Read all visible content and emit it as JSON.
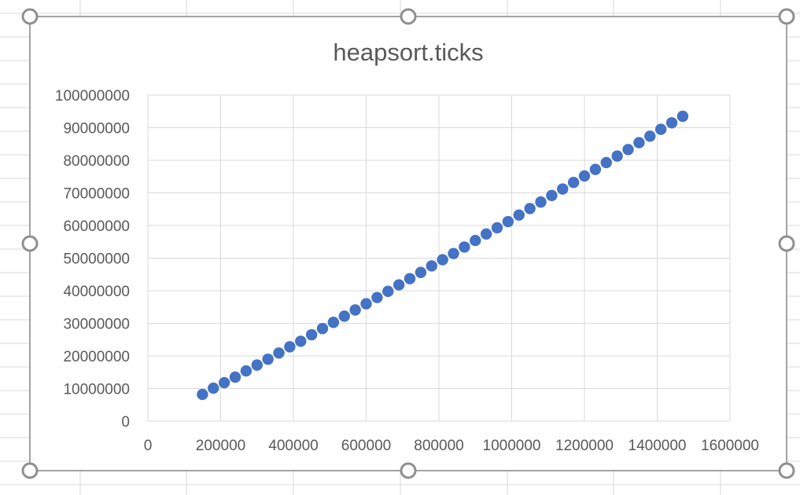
{
  "chart_data": {
    "type": "scatter",
    "title": "heapsort.ticks",
    "xlabel": "",
    "ylabel": "",
    "xlim": [
      0,
      1600000
    ],
    "ylim": [
      0,
      100000000
    ],
    "x_ticks": [
      "0",
      "200000",
      "400000",
      "600000",
      "800000",
      "1000000",
      "1200000",
      "1400000",
      "1600000"
    ],
    "y_ticks": [
      "0",
      "10000000",
      "20000000",
      "30000000",
      "40000000",
      "50000000",
      "60000000",
      "70000000",
      "80000000",
      "90000000",
      "100000000"
    ],
    "grid": true,
    "legend": "none",
    "marker_color": "#4472c4",
    "series": [
      {
        "x": [
          150000,
          180000,
          210000,
          240000,
          270000,
          300000,
          330000,
          360000,
          390000,
          420000,
          450000,
          480000,
          510000,
          540000,
          570000,
          600000,
          630000,
          660000,
          690000,
          720000,
          750000,
          780000,
          810000,
          840000,
          870000,
          900000,
          930000,
          960000,
          990000,
          1020000,
          1050000,
          1080000,
          1110000,
          1140000,
          1170000,
          1200000,
          1230000,
          1260000,
          1290000,
          1320000,
          1350000,
          1380000,
          1410000,
          1440000,
          1470000
        ],
        "y": [
          8200000,
          10100000,
          11800000,
          13500000,
          15400000,
          17200000,
          19000000,
          20900000,
          22800000,
          24500000,
          26500000,
          28400000,
          30300000,
          32200000,
          34100000,
          36000000,
          37900000,
          39800000,
          41800000,
          43700000,
          45600000,
          47600000,
          49500000,
          51400000,
          53400000,
          55400000,
          57400000,
          59300000,
          61200000,
          63200000,
          65200000,
          67200000,
          69200000,
          71200000,
          73200000,
          75200000,
          77200000,
          79300000,
          81300000,
          83300000,
          85400000,
          87400000,
          89500000,
          91500000,
          93500000
        ]
      }
    ]
  }
}
